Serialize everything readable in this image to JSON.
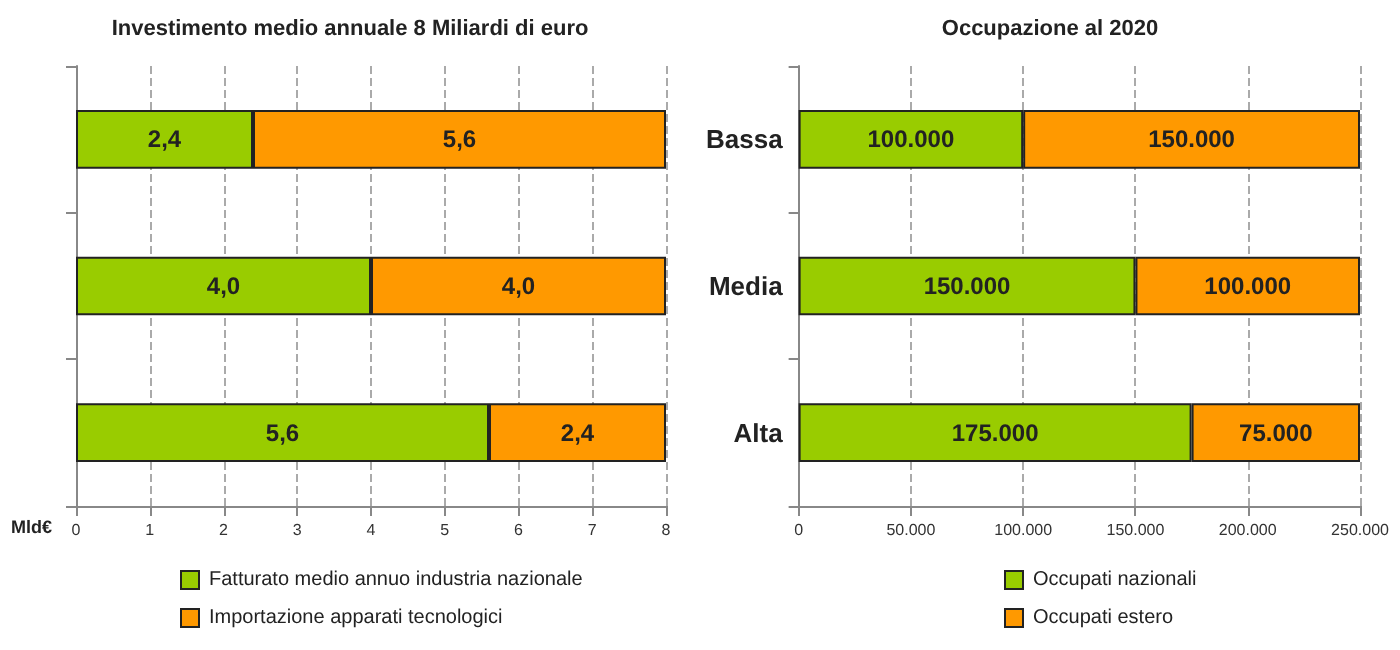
{
  "chart_data": [
    {
      "type": "bar",
      "orientation": "horizontal",
      "stacked": true,
      "title": "Investimento medio annuale 8 Miliardi di euro",
      "xlabel": "Mld€",
      "categories": [
        null,
        null,
        null
      ],
      "tick_labels": "x",
      "xlim": [
        0,
        8
      ],
      "xticks": [
        0,
        1,
        2,
        3,
        4,
        5,
        6,
        7,
        8
      ],
      "grid": "x",
      "legend": "bottom",
      "series": [
        {
          "name": "Fatturato medio annuo industria nazionale",
          "color": "#99cc00",
          "values": [
            2.4,
            4.0,
            5.6
          ],
          "value_labels": [
            "2,4",
            "4,0",
            "5,6"
          ]
        },
        {
          "name": "Importazione apparati tecnologici",
          "color": "#ff9900",
          "values": [
            5.6,
            4.0,
            2.4
          ],
          "value_labels": [
            "5,6",
            "4,0",
            "2,4"
          ]
        }
      ]
    },
    {
      "type": "bar",
      "orientation": "horizontal",
      "stacked": true,
      "title": "Occupazione al 2020",
      "categories": [
        "Bassa",
        "Media",
        "Alta"
      ],
      "xlim": [
        0,
        250000
      ],
      "xticks": [
        0,
        {
          "value": 50000,
          "label": "50.000"
        },
        {
          "value": 100000,
          "label": "100.000"
        },
        {
          "value": 150000,
          "label": "150.000"
        },
        {
          "value": 200000,
          "label": "200.000"
        },
        {
          "value": 250000,
          "label": "250.000"
        }
      ],
      "grid": "x",
      "legend": "bottom",
      "series": [
        {
          "name": "Occupati nazionali",
          "color": "#99cc00",
          "values": [
            100000,
            150000,
            175000
          ],
          "value_labels": [
            "100.000",
            "150.000",
            "175.000"
          ]
        },
        {
          "name": "Occupati estero",
          "color": "#ff9900",
          "values": [
            150000,
            100000,
            75000
          ],
          "value_labels": [
            "150.000",
            "100.000",
            "75.000"
          ]
        }
      ]
    }
  ]
}
